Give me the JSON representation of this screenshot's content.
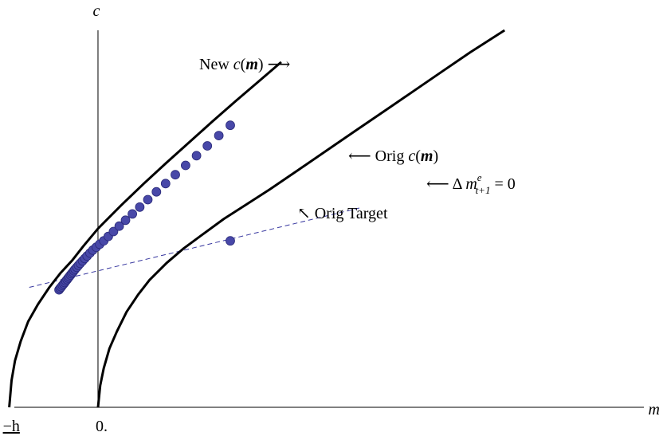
{
  "chart_data": {
    "type": "line",
    "xlabel": "m",
    "ylabel": "c",
    "x_ticks": [
      {
        "value": -1.55,
        "label": "−h"
      },
      {
        "value": 0,
        "label": "0."
      }
    ],
    "series": [
      {
        "name": "New c(m)",
        "label_prefix": "New ",
        "label_fn": "c",
        "label_arg": "m",
        "label_arrow": "⟶",
        "x": [
          -1.55,
          -1.51,
          -1.45,
          -1.35,
          -1.22,
          -1.05,
          -0.85,
          -0.65,
          -0.45,
          -0.25,
          0,
          0.4,
          0.8,
          1.2,
          1.6,
          2.0,
          2.4,
          2.8,
          3.2
        ],
        "y": [
          0,
          0.55,
          0.95,
          1.35,
          1.75,
          2.1,
          2.45,
          2.75,
          3.0,
          3.3,
          3.65,
          4.12,
          4.57,
          5.0,
          5.42,
          5.84,
          6.25,
          6.65,
          7.05
        ]
      },
      {
        "name": "Orig c(m)",
        "label_prefix": "Orig ",
        "label_fn": "c",
        "label_arg": "m",
        "label_arrow": "⟵",
        "x": [
          0,
          0.04,
          0.1,
          0.2,
          0.33,
          0.5,
          0.7,
          0.9,
          1.2,
          1.5,
          1.85,
          2.2,
          2.6,
          3.0,
          3.5,
          4.0,
          4.5,
          5.0,
          5.5,
          6.0,
          6.5,
          7.1
        ],
        "y": [
          0,
          0.45,
          0.8,
          1.2,
          1.55,
          1.95,
          2.3,
          2.6,
          2.95,
          3.25,
          3.55,
          3.85,
          4.15,
          4.45,
          4.85,
          5.25,
          5.65,
          6.05,
          6.45,
          6.85,
          7.25,
          7.7
        ]
      }
    ],
    "constraint_line": {
      "label_arrow": "⟵ Δ ",
      "label_var": "m",
      "label_sup": "e",
      "label_sub": "t+1",
      "label_rhs": " = 0",
      "x": [
        -1.2,
        4.6
      ],
      "y": [
        2.45,
        4.08
      ]
    },
    "new_points": {
      "x": [
        -0.68,
        -0.66,
        -0.64,
        -0.62,
        -0.6,
        -0.58,
        -0.56,
        -0.54,
        -0.52,
        -0.5,
        -0.48,
        -0.46,
        -0.44,
        -0.42,
        -0.4,
        -0.37,
        -0.34,
        -0.31,
        -0.27,
        -0.23,
        -0.19,
        -0.14,
        -0.09,
        -0.03,
        0.03,
        0.1,
        0.18,
        0.27,
        0.37,
        0.48,
        0.6,
        0.73,
        0.87,
        1.02,
        1.18,
        1.35,
        1.53,
        1.72,
        1.91,
        2.11,
        2.31
      ],
      "y": [
        2.4,
        2.43,
        2.46,
        2.49,
        2.52,
        2.55,
        2.58,
        2.61,
        2.64,
        2.67,
        2.7,
        2.73,
        2.76,
        2.79,
        2.82,
        2.86,
        2.9,
        2.94,
        2.99,
        3.04,
        3.09,
        3.15,
        3.21,
        3.27,
        3.33,
        3.4,
        3.49,
        3.59,
        3.7,
        3.82,
        3.95,
        4.09,
        4.24,
        4.4,
        4.57,
        4.75,
        4.94,
        5.14,
        5.34,
        5.55,
        5.76
      ]
    },
    "orig_target": {
      "x": 2.31,
      "y": 3.4,
      "label_arrow": "↖ ",
      "label": "Orig Target"
    },
    "xlim": [
      -1.6,
      9.7
    ],
    "ylim": [
      0,
      7.7
    ],
    "grid": false,
    "legend": "none",
    "colors": {
      "curve": "#000000",
      "points": "#4848a8",
      "points_stroke": "#2a2a7a",
      "constraint": "#3838a0"
    }
  }
}
